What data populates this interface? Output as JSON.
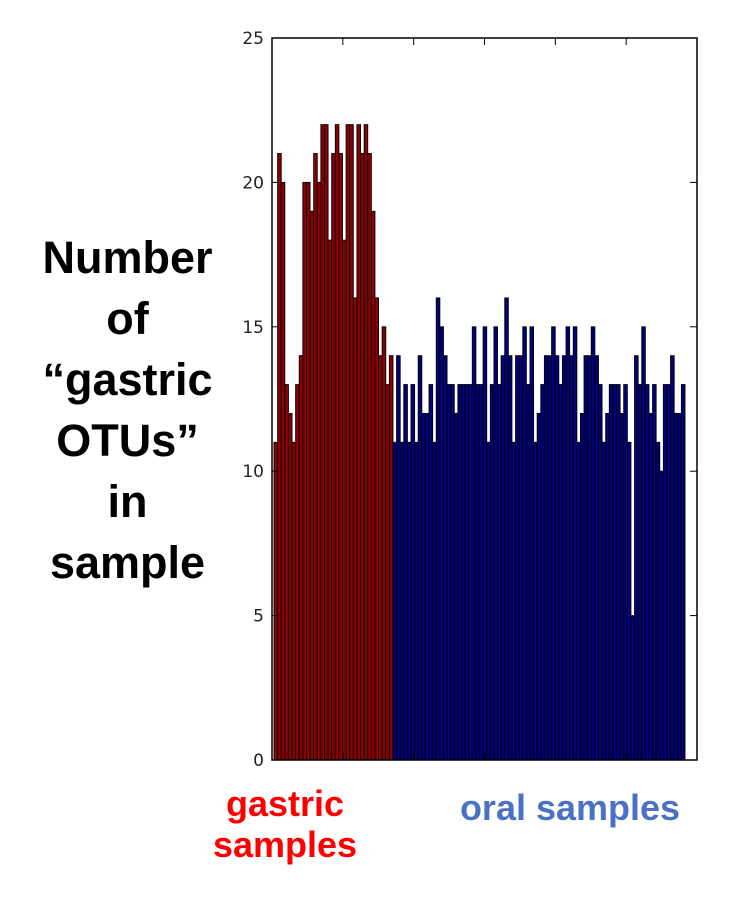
{
  "chart_data": {
    "type": "bar",
    "title": "",
    "ylabel_lines": [
      "Number",
      "of",
      "“gastric",
      "OTUs”",
      "in",
      "sample"
    ],
    "ylim": [
      0,
      25
    ],
    "y_ticks": [
      {
        "value": 0,
        "label": "0"
      },
      {
        "value": 5,
        "label": "5"
      },
      {
        "value": 10,
        "label": "10"
      },
      {
        "value": 15,
        "label": "15"
      },
      {
        "value": 20,
        "label": "20"
      },
      {
        "value": 25,
        "label": "25"
      }
    ],
    "grid": false,
    "series": [
      {
        "color": "#8b0000",
        "values": [
          11,
          21,
          20,
          13,
          12,
          11,
          13,
          14,
          20,
          20,
          19,
          21,
          20,
          22,
          22,
          18,
          21,
          22,
          21,
          18,
          22,
          22,
          16,
          22,
          21,
          22,
          21,
          19,
          16,
          14,
          15,
          13,
          14
        ]
      },
      {
        "color": "#00007a",
        "values": [
          11,
          14,
          11,
          13,
          11,
          13,
          11,
          14,
          12,
          12,
          13,
          11,
          16,
          15,
          14,
          13,
          13,
          12,
          13,
          13,
          13,
          13,
          15,
          13,
          13,
          15,
          11,
          13,
          15,
          13,
          14,
          16,
          14,
          11,
          14,
          14,
          15,
          13,
          15,
          11,
          12,
          13,
          14,
          14,
          15,
          14,
          13,
          14,
          15,
          14,
          15,
          11,
          12,
          14,
          14,
          15,
          14,
          13,
          11,
          12,
          13,
          13,
          13,
          12,
          13,
          11,
          5,
          14,
          13,
          15,
          13,
          12,
          13,
          11,
          10,
          13,
          13,
          14,
          12,
          12,
          13
        ]
      }
    ]
  },
  "labels": {
    "gastric": "gastric samples",
    "oral": "oral samples"
  },
  "colors": {
    "gastric_label": "#ff0000",
    "oral_label": "#4a72c4"
  }
}
